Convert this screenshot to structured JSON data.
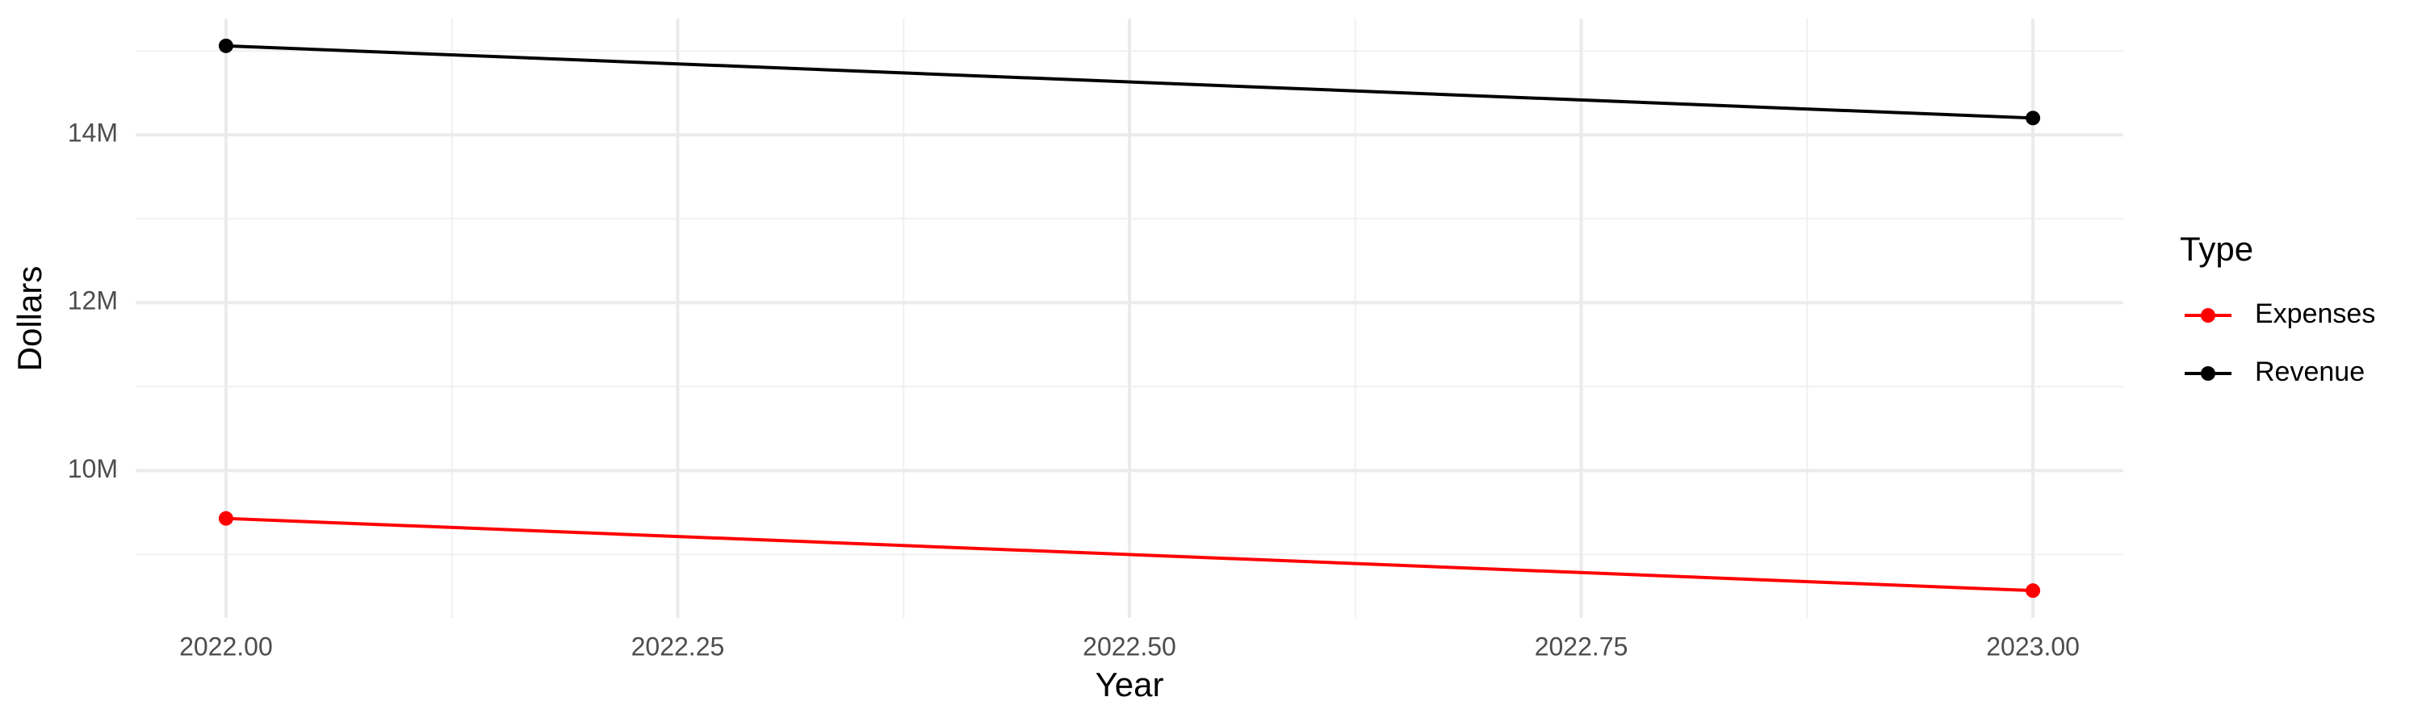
{
  "chart_data": {
    "type": "line",
    "x_label": "Year",
    "y_label": "Dollars",
    "legend_title": "Type",
    "x": [
      2022,
      2023
    ],
    "series": [
      {
        "name": "Expenses",
        "color": "#ff0000",
        "values": [
          9430000,
          8570000
        ]
      },
      {
        "name": "Revenue",
        "color": "#000000",
        "values": [
          15060000,
          14200000
        ]
      }
    ],
    "xlim": [
      2021.95,
      2023.05
    ],
    "xticks": [
      {
        "value": 2022,
        "label": "2022.00"
      },
      {
        "value": 2022.25,
        "label": "2022.25"
      },
      {
        "value": 2022.5,
        "label": "2022.50"
      },
      {
        "value": 2022.75,
        "label": "2022.75"
      },
      {
        "value": 2023,
        "label": "2023.00"
      }
    ],
    "ylim": [
      8245000,
      15385000
    ],
    "yticks": [
      {
        "value": 10000000,
        "label": "10M"
      },
      {
        "value": 12000000,
        "label": "12M"
      },
      {
        "value": 14000000,
        "label": "14M"
      }
    ],
    "grid": true,
    "legend_position": "right"
  }
}
